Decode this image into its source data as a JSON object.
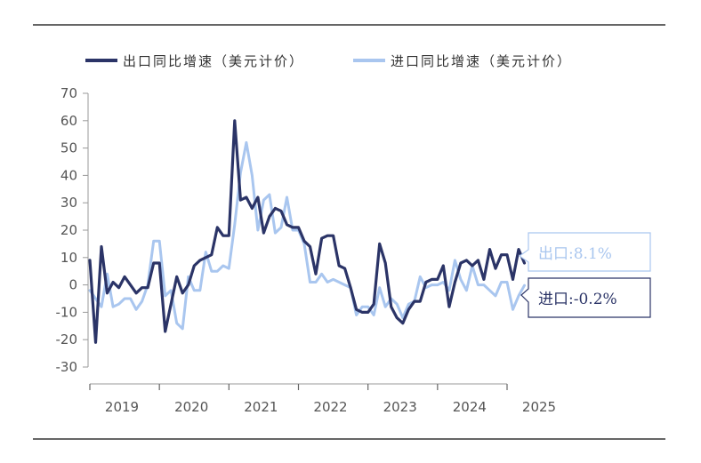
{
  "chart_data": {
    "type": "line",
    "title": "",
    "xlabel": "",
    "ylabel": "",
    "ylim": [
      -30,
      70
    ],
    "yticks": [
      -30,
      -20,
      -10,
      0,
      10,
      20,
      30,
      40,
      50,
      60,
      70
    ],
    "xticklabels": [
      "2019",
      "2020",
      "2021",
      "2022",
      "2023",
      "2024",
      "2025"
    ],
    "x_start": "2019-01",
    "legend_position": "top",
    "grid": false,
    "series": [
      {
        "name": "出口同比增速（美元计价）",
        "color": "#2b3467",
        "values": [
          9,
          -21,
          14,
          -3,
          1,
          -1,
          3,
          0,
          -3,
          -1,
          -1,
          8,
          8,
          -17,
          -7,
          3,
          -3,
          0,
          7,
          9,
          10,
          11,
          21,
          18,
          18,
          60,
          31,
          32,
          28,
          32,
          19,
          25,
          28,
          27,
          22,
          21,
          21,
          16,
          14,
          4,
          17,
          18,
          18,
          7,
          6,
          -1,
          -9,
          -10,
          -10,
          -7,
          15,
          8,
          -8,
          -12,
          -14,
          -9,
          -6,
          -6,
          1,
          2,
          2,
          7,
          -8,
          1,
          8,
          9,
          7,
          9,
          2,
          13,
          6,
          11,
          11,
          2,
          13,
          8
        ],
        "latest_label": "出口:8.1%"
      },
      {
        "name": "进口同比增速（美元计价）",
        "color": "#a9c6ef",
        "values": [
          -2,
          -5,
          -8,
          4,
          -8,
          -7,
          -5,
          -5,
          -9,
          -6,
          0,
          16,
          16,
          -4,
          -2,
          -14,
          -16,
          3,
          -2,
          -2,
          12,
          5,
          5,
          7,
          6,
          22,
          41,
          52,
          40,
          20,
          31,
          33,
          19,
          21,
          32,
          20,
          20,
          15,
          1,
          1,
          4,
          1,
          2,
          1,
          0,
          -1,
          -11,
          -8,
          -8,
          -11,
          -1,
          -8,
          -5,
          -7,
          -12,
          -7,
          -6,
          3,
          -1,
          0,
          0,
          1,
          -2,
          9,
          2,
          -2,
          7,
          0,
          0,
          -2,
          -4,
          1,
          1,
          -9,
          -4,
          -0.2
        ],
        "latest_label": "进口:-0.2%"
      }
    ]
  }
}
